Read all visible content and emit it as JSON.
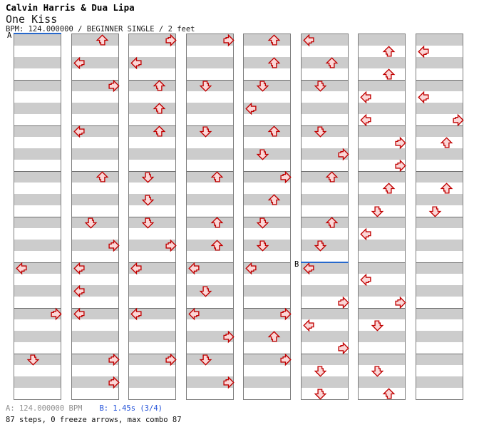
{
  "header": {
    "artist": "Calvin Harris & Dua Lipa",
    "song": "One Kiss",
    "info_line": "BPM: 124.000000 / BEGINNER SINGLE / 2 feet"
  },
  "footer": {
    "segment_a": "A: 124.000000 BPM",
    "segment_b": "B: 1.45s (3/4)",
    "summary": "87 steps, 0 freeze arrows, max combo 87"
  },
  "colors": {
    "arrow_fill": "#fbd7d7",
    "arrow_stroke": "#c00000",
    "stripe_gray": "#cccccc",
    "stripe_white": "#ffffff",
    "grid_border": "#7d7d7d",
    "marker_blue": "#2668cc",
    "footer_a_gray": "#909090",
    "footer_b_blue": "#1f4fd8"
  },
  "chart": {
    "columns": 8,
    "measures_per_column": 8,
    "rows_per_measure": 4,
    "lanes": [
      "left",
      "down",
      "up",
      "right"
    ],
    "markers": [
      {
        "label": "A",
        "col": 0,
        "row": 0
      },
      {
        "label": "B",
        "col": 5,
        "row": 20
      }
    ],
    "arrows": [
      {
        "col": 0,
        "row": 20,
        "dir": "left"
      },
      {
        "col": 0,
        "row": 24,
        "dir": "right"
      },
      {
        "col": 0,
        "row": 28,
        "dir": "down"
      },
      {
        "col": 1,
        "row": 0,
        "dir": "up"
      },
      {
        "col": 1,
        "row": 2,
        "dir": "left"
      },
      {
        "col": 1,
        "row": 4,
        "dir": "right"
      },
      {
        "col": 1,
        "row": 8,
        "dir": "left"
      },
      {
        "col": 1,
        "row": 12,
        "dir": "up"
      },
      {
        "col": 1,
        "row": 16,
        "dir": "down"
      },
      {
        "col": 1,
        "row": 18,
        "dir": "right"
      },
      {
        "col": 1,
        "row": 20,
        "dir": "left"
      },
      {
        "col": 1,
        "row": 22,
        "dir": "left"
      },
      {
        "col": 1,
        "row": 24,
        "dir": "left"
      },
      {
        "col": 1,
        "row": 28,
        "dir": "right"
      },
      {
        "col": 1,
        "row": 30,
        "dir": "right"
      },
      {
        "col": 2,
        "row": 0,
        "dir": "right"
      },
      {
        "col": 2,
        "row": 2,
        "dir": "left"
      },
      {
        "col": 2,
        "row": 4,
        "dir": "up"
      },
      {
        "col": 2,
        "row": 6,
        "dir": "up"
      },
      {
        "col": 2,
        "row": 8,
        "dir": "up"
      },
      {
        "col": 2,
        "row": 12,
        "dir": "down"
      },
      {
        "col": 2,
        "row": 14,
        "dir": "down"
      },
      {
        "col": 2,
        "row": 16,
        "dir": "down"
      },
      {
        "col": 2,
        "row": 18,
        "dir": "right"
      },
      {
        "col": 2,
        "row": 20,
        "dir": "left"
      },
      {
        "col": 2,
        "row": 24,
        "dir": "left"
      },
      {
        "col": 2,
        "row": 28,
        "dir": "right"
      },
      {
        "col": 3,
        "row": 0,
        "dir": "right"
      },
      {
        "col": 3,
        "row": 4,
        "dir": "down"
      },
      {
        "col": 3,
        "row": 8,
        "dir": "down"
      },
      {
        "col": 3,
        "row": 12,
        "dir": "up"
      },
      {
        "col": 3,
        "row": 16,
        "dir": "up"
      },
      {
        "col": 3,
        "row": 18,
        "dir": "up"
      },
      {
        "col": 3,
        "row": 20,
        "dir": "left"
      },
      {
        "col": 3,
        "row": 22,
        "dir": "down"
      },
      {
        "col": 3,
        "row": 24,
        "dir": "left"
      },
      {
        "col": 3,
        "row": 26,
        "dir": "right"
      },
      {
        "col": 3,
        "row": 28,
        "dir": "down"
      },
      {
        "col": 3,
        "row": 30,
        "dir": "right"
      },
      {
        "col": 4,
        "row": 0,
        "dir": "up"
      },
      {
        "col": 4,
        "row": 2,
        "dir": "up"
      },
      {
        "col": 4,
        "row": 4,
        "dir": "down"
      },
      {
        "col": 4,
        "row": 6,
        "dir": "left"
      },
      {
        "col": 4,
        "row": 8,
        "dir": "up"
      },
      {
        "col": 4,
        "row": 10,
        "dir": "down"
      },
      {
        "col": 4,
        "row": 12,
        "dir": "right"
      },
      {
        "col": 4,
        "row": 14,
        "dir": "up"
      },
      {
        "col": 4,
        "row": 16,
        "dir": "down"
      },
      {
        "col": 4,
        "row": 18,
        "dir": "down"
      },
      {
        "col": 4,
        "row": 20,
        "dir": "left"
      },
      {
        "col": 4,
        "row": 24,
        "dir": "right"
      },
      {
        "col": 4,
        "row": 26,
        "dir": "up"
      },
      {
        "col": 4,
        "row": 28,
        "dir": "right"
      },
      {
        "col": 5,
        "row": 0,
        "dir": "left"
      },
      {
        "col": 5,
        "row": 2,
        "dir": "up"
      },
      {
        "col": 5,
        "row": 4,
        "dir": "down"
      },
      {
        "col": 5,
        "row": 8,
        "dir": "down"
      },
      {
        "col": 5,
        "row": 10,
        "dir": "right"
      },
      {
        "col": 5,
        "row": 12,
        "dir": "up"
      },
      {
        "col": 5,
        "row": 16,
        "dir": "up"
      },
      {
        "col": 5,
        "row": 18,
        "dir": "down"
      },
      {
        "col": 5,
        "row": 20,
        "dir": "left"
      },
      {
        "col": 5,
        "row": 23,
        "dir": "right"
      },
      {
        "col": 5,
        "row": 25,
        "dir": "left"
      },
      {
        "col": 5,
        "row": 27,
        "dir": "right"
      },
      {
        "col": 5,
        "row": 29,
        "dir": "down"
      },
      {
        "col": 5,
        "row": 31,
        "dir": "down"
      },
      {
        "col": 6,
        "row": 1,
        "dir": "up"
      },
      {
        "col": 6,
        "row": 3,
        "dir": "up"
      },
      {
        "col": 6,
        "row": 5,
        "dir": "left"
      },
      {
        "col": 6,
        "row": 7,
        "dir": "left"
      },
      {
        "col": 6,
        "row": 9,
        "dir": "right"
      },
      {
        "col": 6,
        "row": 11,
        "dir": "right"
      },
      {
        "col": 6,
        "row": 13,
        "dir": "up"
      },
      {
        "col": 6,
        "row": 15,
        "dir": "down"
      },
      {
        "col": 6,
        "row": 17,
        "dir": "left"
      },
      {
        "col": 6,
        "row": 21,
        "dir": "left"
      },
      {
        "col": 6,
        "row": 23,
        "dir": "right"
      },
      {
        "col": 6,
        "row": 25,
        "dir": "down"
      },
      {
        "col": 6,
        "row": 29,
        "dir": "down"
      },
      {
        "col": 6,
        "row": 31,
        "dir": "up"
      },
      {
        "col": 7,
        "row": 1,
        "dir": "left"
      },
      {
        "col": 7,
        "row": 5,
        "dir": "left"
      },
      {
        "col": 7,
        "row": 7,
        "dir": "right"
      },
      {
        "col": 7,
        "row": 9,
        "dir": "up"
      },
      {
        "col": 7,
        "row": 13,
        "dir": "up"
      },
      {
        "col": 7,
        "row": 15,
        "dir": "down"
      }
    ]
  }
}
